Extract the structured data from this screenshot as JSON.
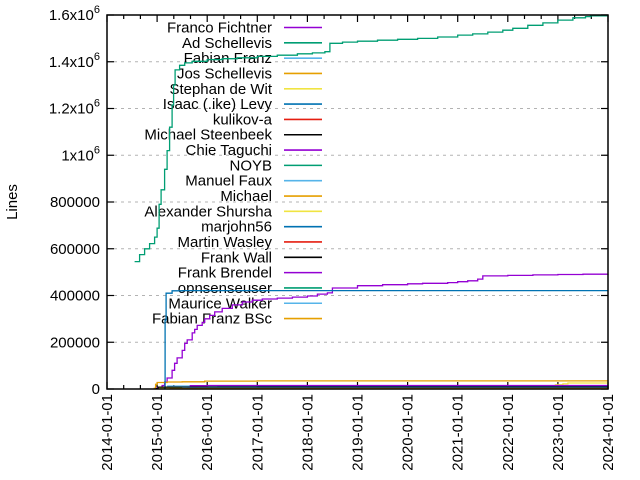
{
  "chart_data": {
    "type": "line",
    "title": "",
    "ylabel": "Lines",
    "xlabel": "",
    "grid": true,
    "legend_position": "top-left-inside",
    "xlim_years": [
      2014,
      2024
    ],
    "ylim": [
      0,
      1600000
    ],
    "x_ticks": [
      {
        "year": 2014,
        "label": "2014-01-01"
      },
      {
        "year": 2015,
        "label": "2015-01-01"
      },
      {
        "year": 2016,
        "label": "2016-01-01"
      },
      {
        "year": 2017,
        "label": "2017-01-01"
      },
      {
        "year": 2018,
        "label": "2018-01-01"
      },
      {
        "year": 2019,
        "label": "2019-01-01"
      },
      {
        "year": 2020,
        "label": "2020-01-01"
      },
      {
        "year": 2021,
        "label": "2021-01-01"
      },
      {
        "year": 2022,
        "label": "2022-01-01"
      },
      {
        "year": 2023,
        "label": "2023-01-01"
      },
      {
        "year": 2024,
        "label": "2024-01-01"
      }
    ],
    "y_ticks": [
      {
        "value": 0,
        "label": "0"
      },
      {
        "value": 200000,
        "label": "200000"
      },
      {
        "value": 400000,
        "label": "400000"
      },
      {
        "value": 600000,
        "label": "600000"
      },
      {
        "value": 800000,
        "label": "800000"
      },
      {
        "value": 1000000,
        "label": "1x10^6"
      },
      {
        "value": 1200000,
        "label": "1.2x10^6"
      },
      {
        "value": 1400000,
        "label": "1.4x10^6"
      },
      {
        "value": 1600000,
        "label": "1.6x10^6"
      }
    ],
    "colors": {
      "violet": "#9400d3",
      "green": "#009e73",
      "skyblue": "#56b4e9",
      "orange": "#e69f00",
      "yellow": "#f0e442",
      "blue": "#0072b2",
      "red": "#e51e10",
      "black": "#000000",
      "grid": "#b3b3b3"
    },
    "series": [
      {
        "name": "Franco Fichtner",
        "color": "#9400d3",
        "points": [
          [
            2014.95,
            1000
          ],
          [
            2015.0,
            5000
          ],
          [
            2015.1,
            15000
          ],
          [
            2015.15,
            30000
          ],
          [
            2015.2,
            47000
          ],
          [
            2015.3,
            80000
          ],
          [
            2015.35,
            110000
          ],
          [
            2015.4,
            133000
          ],
          [
            2015.5,
            165000
          ],
          [
            2015.55,
            195000
          ],
          [
            2015.6,
            210000
          ],
          [
            2015.7,
            240000
          ],
          [
            2015.75,
            255000
          ],
          [
            2015.8,
            272000
          ],
          [
            2015.9,
            285000
          ],
          [
            2015.95,
            300000
          ],
          [
            2016.05,
            315000
          ],
          [
            2016.15,
            330000
          ],
          [
            2016.3,
            345000
          ],
          [
            2016.5,
            360000
          ],
          [
            2016.7,
            372000
          ],
          [
            2016.9,
            380000
          ],
          [
            2017.1,
            385000
          ],
          [
            2017.4,
            389000
          ],
          [
            2017.7,
            393000
          ],
          [
            2018.0,
            398000
          ],
          [
            2018.2,
            406000
          ],
          [
            2018.4,
            411000
          ],
          [
            2018.5,
            432000
          ],
          [
            2019.0,
            442000
          ],
          [
            2019.5,
            446000
          ],
          [
            2020.0,
            450000
          ],
          [
            2020.3,
            452000
          ],
          [
            2020.8,
            455000
          ],
          [
            2021.0,
            459000
          ],
          [
            2021.2,
            463000
          ],
          [
            2021.4,
            470000
          ],
          [
            2021.5,
            484000
          ],
          [
            2022.0,
            486000
          ],
          [
            2022.5,
            488000
          ],
          [
            2023.0,
            490000
          ],
          [
            2023.5,
            491000
          ],
          [
            2024.0,
            492000
          ]
        ]
      },
      {
        "name": "Ad Schellevis",
        "color": "#009e73",
        "points": [
          [
            2014.55,
            545000
          ],
          [
            2014.65,
            575000
          ],
          [
            2014.75,
            600000
          ],
          [
            2014.85,
            622000
          ],
          [
            2014.95,
            650000
          ],
          [
            2015.0,
            688000
          ],
          [
            2015.04,
            790000
          ],
          [
            2015.08,
            852000
          ],
          [
            2015.15,
            940000
          ],
          [
            2015.2,
            1020000
          ],
          [
            2015.25,
            1120000
          ],
          [
            2015.3,
            1215000
          ],
          [
            2015.33,
            1300000
          ],
          [
            2015.36,
            1365000
          ],
          [
            2015.45,
            1385000
          ],
          [
            2015.55,
            1395000
          ],
          [
            2015.7,
            1402000
          ],
          [
            2016.0,
            1409000
          ],
          [
            2016.3,
            1413000
          ],
          [
            2016.6,
            1417000
          ],
          [
            2017.0,
            1423000
          ],
          [
            2017.4,
            1428000
          ],
          [
            2017.8,
            1434000
          ],
          [
            2018.1,
            1438000
          ],
          [
            2018.35,
            1443000
          ],
          [
            2018.45,
            1479000
          ],
          [
            2018.7,
            1484000
          ],
          [
            2019.0,
            1488000
          ],
          [
            2019.4,
            1492000
          ],
          [
            2019.8,
            1496000
          ],
          [
            2020.2,
            1500000
          ],
          [
            2020.6,
            1506000
          ],
          [
            2021.0,
            1514000
          ],
          [
            2021.3,
            1519000
          ],
          [
            2021.6,
            1527000
          ],
          [
            2021.9,
            1535000
          ],
          [
            2022.1,
            1543000
          ],
          [
            2022.4,
            1556000
          ],
          [
            2022.7,
            1566000
          ],
          [
            2023.0,
            1578000
          ],
          [
            2023.3,
            1588000
          ],
          [
            2023.55,
            1593000
          ],
          [
            2023.65,
            1596000
          ],
          [
            2024.0,
            1597000
          ]
        ]
      },
      {
        "name": "Fabian Franz",
        "color": "#56b4e9",
        "points": [
          [
            2015.2,
            13000
          ],
          [
            2016.0,
            13300
          ],
          [
            2024.0,
            13500
          ]
        ]
      },
      {
        "name": "Jos Schellevis",
        "color": "#e69f00",
        "points": [
          [
            2014.93,
            3000
          ],
          [
            2014.97,
            20000
          ],
          [
            2015.0,
            28000
          ],
          [
            2015.2,
            30000
          ],
          [
            2015.5,
            31000
          ],
          [
            2015.95,
            34000
          ],
          [
            2017.0,
            34500
          ],
          [
            2024.0,
            35000
          ]
        ]
      },
      {
        "name": "Stephan de Wit",
        "color": "#f0e442",
        "points": [
          [
            2015.02,
            4000
          ],
          [
            2015.3,
            5500
          ],
          [
            2024.0,
            6000
          ]
        ]
      },
      {
        "name": "Isaac (.ike) Levy",
        "color": "#0072b2",
        "points": [
          [
            2015.14,
            2000
          ],
          [
            2015.16,
            295000
          ],
          [
            2015.18,
            410000
          ],
          [
            2015.3,
            420000
          ],
          [
            2015.5,
            421000
          ],
          [
            2024.0,
            421000
          ]
        ]
      },
      {
        "name": "kulikov-a",
        "color": "#e51e10",
        "points": [
          [
            2016.0,
            8000
          ],
          [
            2017.0,
            9000
          ],
          [
            2020.0,
            10000
          ],
          [
            2024.0,
            10500
          ]
        ]
      },
      {
        "name": "Michael Steenbeek",
        "color": "#000000",
        "points": [
          [
            2016.8,
            2500
          ],
          [
            2020.0,
            3000
          ],
          [
            2024.0,
            3500
          ]
        ]
      },
      {
        "name": "Chie Taguchi",
        "color": "#9400d3",
        "points": [
          [
            2015.6,
            4500
          ],
          [
            2024.0,
            5000
          ]
        ]
      },
      {
        "name": "NOYB",
        "color": "#009e73",
        "points": [
          [
            2016.4,
            3500
          ],
          [
            2024.0,
            4200
          ]
        ]
      },
      {
        "name": "Manuel Faux",
        "color": "#56b4e9",
        "points": [
          [
            2015.4,
            11000
          ],
          [
            2016.0,
            12000
          ],
          [
            2024.0,
            12500
          ]
        ]
      },
      {
        "name": "Michael",
        "color": "#e69f00",
        "points": [
          [
            2015.8,
            6500
          ],
          [
            2024.0,
            7000
          ]
        ]
      },
      {
        "name": "Alexander Shursha",
        "color": "#f0e442",
        "points": [
          [
            2022.55,
            2000
          ],
          [
            2022.7,
            8000
          ],
          [
            2022.8,
            13000
          ],
          [
            2022.95,
            18000
          ],
          [
            2023.1,
            22000
          ],
          [
            2023.2,
            25500
          ],
          [
            2024.0,
            26500
          ]
        ]
      },
      {
        "name": "marjohn56",
        "color": "#0072b2",
        "points": [
          [
            2016.2,
            9000
          ],
          [
            2017.0,
            11000
          ],
          [
            2024.0,
            12000
          ]
        ]
      },
      {
        "name": "Martin Wasley",
        "color": "#e51e10",
        "points": [
          [
            2017.0,
            6000
          ],
          [
            2024.0,
            7000
          ]
        ]
      },
      {
        "name": "Frank Wall",
        "color": "#000000",
        "points": [
          [
            2014.97,
            1500
          ],
          [
            2015.02,
            8000
          ],
          [
            2024.0,
            8800
          ]
        ]
      },
      {
        "name": "Frank Brendel",
        "color": "#9400d3",
        "points": [
          [
            2015.65,
            14000
          ],
          [
            2016.0,
            15000
          ],
          [
            2024.0,
            15800
          ]
        ]
      },
      {
        "name": "opnsenseuser",
        "color": "#009e73",
        "points": [
          [
            2015.3,
            2000
          ],
          [
            2024.0,
            2400
          ]
        ]
      },
      {
        "name": "Maurice Walker",
        "color": "#56b4e9",
        "points": [
          [
            2015.5,
            2800
          ],
          [
            2024.0,
            3000
          ]
        ]
      },
      {
        "name": "Fabian Franz BSc",
        "color": "#e69f00",
        "points": [
          [
            2015.25,
            1200
          ],
          [
            2024.0,
            1500
          ]
        ]
      }
    ]
  }
}
